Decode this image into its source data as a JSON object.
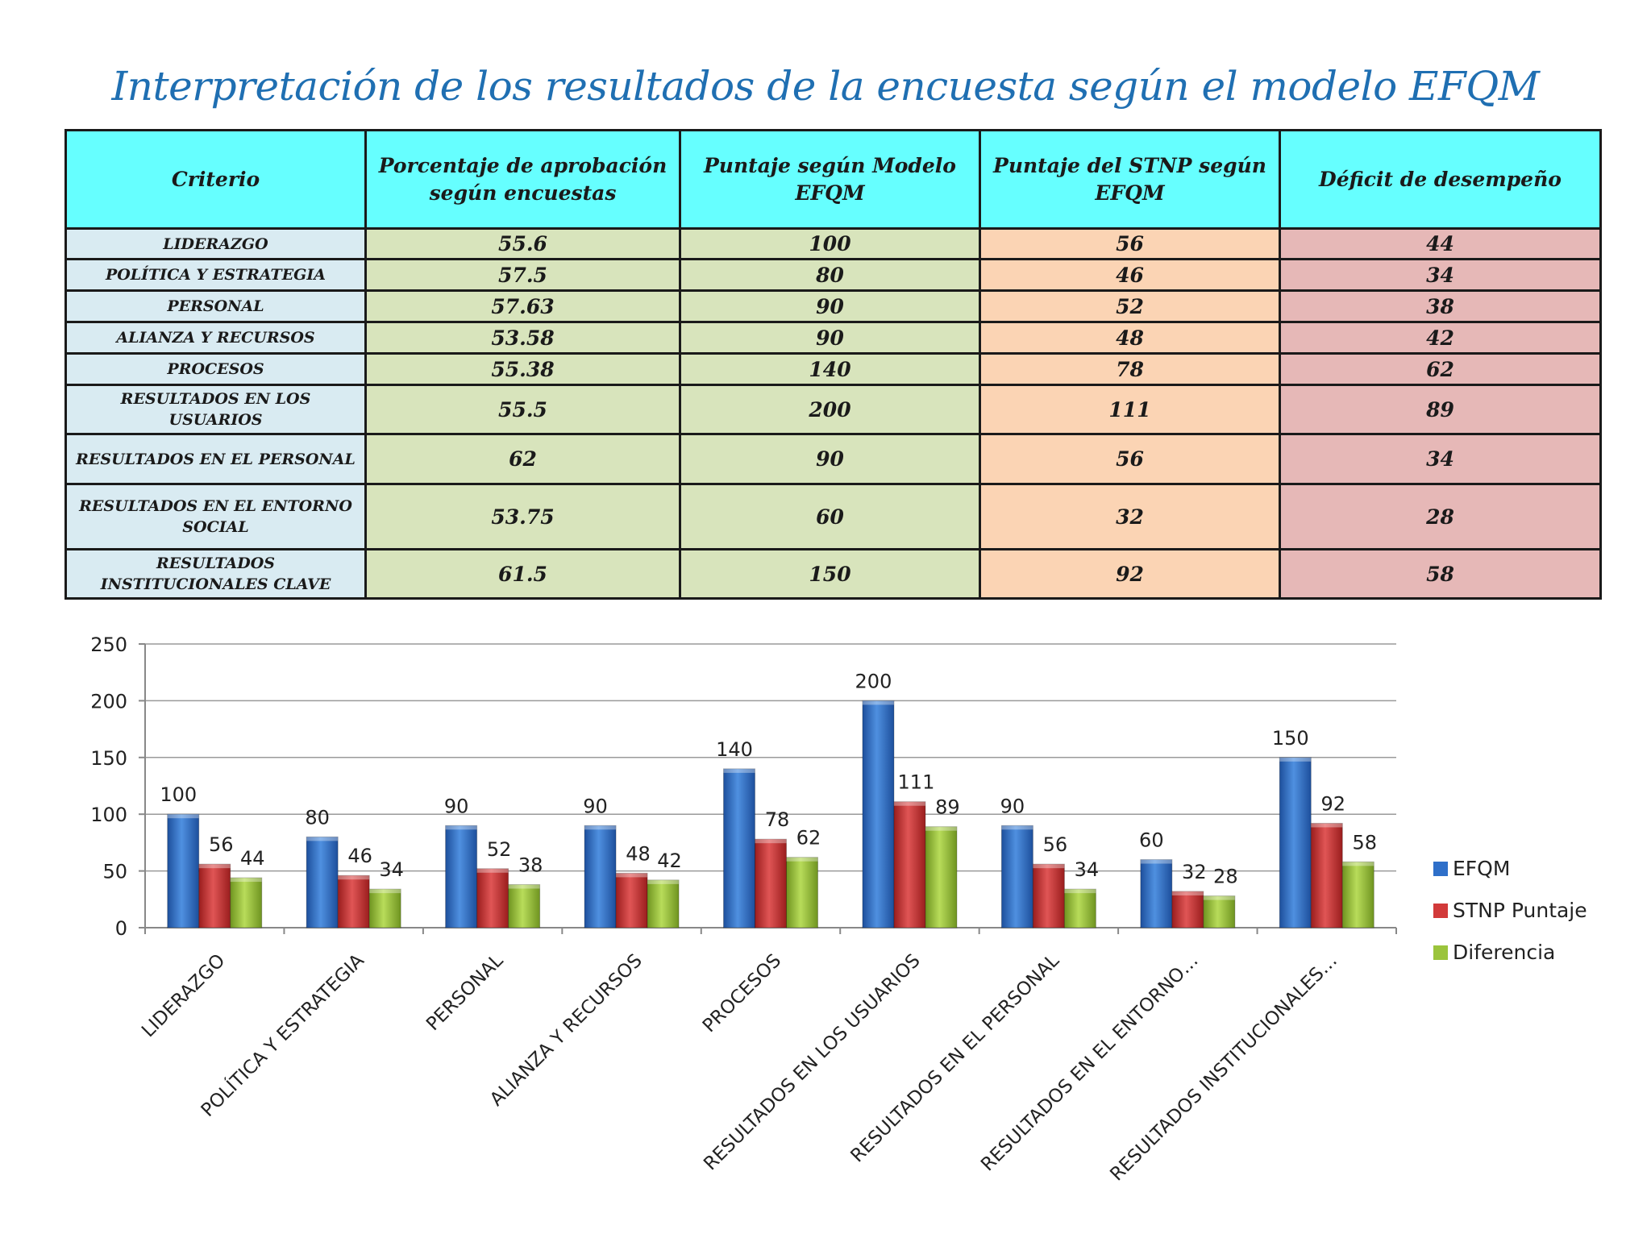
{
  "title": "Interpretación de los resultados de la encuesta según el modelo EFQM",
  "table": {
    "headers": [
      "Criterio",
      "Porcentaje de aprobación según encuestas",
      "Puntaje según Modelo EFQM",
      "Puntaje del STNP según EFQM",
      "Déficit de desempeño"
    ],
    "rows": [
      [
        "LIDERAZGO",
        "55.6",
        "100",
        "56",
        "44"
      ],
      [
        "POLÍTICA Y ESTRATEGIA",
        "57.5",
        "80",
        "46",
        "34"
      ],
      [
        "PERSONAL",
        "57.63",
        "90",
        "52",
        "38"
      ],
      [
        "ALIANZA Y RECURSOS",
        "53.58",
        "90",
        "48",
        "42"
      ],
      [
        "PROCESOS",
        "55.38",
        "140",
        "78",
        "62"
      ],
      [
        "RESULTADOS EN LOS USUARIOS",
        "55.5",
        "200",
        "111",
        "89"
      ],
      [
        "RESULTADOS EN EL PERSONAL",
        "62",
        "90",
        "56",
        "34"
      ],
      [
        "RESULTADOS EN EL ENTORNO SOCIAL",
        "53.75",
        "60",
        "32",
        "28"
      ],
      [
        "RESULTADOS INSTITUCIONALES CLAVE",
        "61.5",
        "150",
        "92",
        "58"
      ]
    ]
  },
  "chart_data": {
    "type": "bar",
    "categories": [
      "LIDERAZGO",
      "POLÍTICA Y ESTRATEGIA",
      "PERSONAL",
      "ALIANZA Y RECURSOS",
      "PROCESOS",
      "RESULTADOS EN LOS USUARIOS",
      "RESULTADOS EN EL PERSONAL",
      "RESULTADOS EN EL ENTORNO…",
      "RESULTADOS INSTITUCIONALES…"
    ],
    "series": [
      {
        "name": "EFQM",
        "color": "#2e6fc9",
        "values": [
          100,
          80,
          90,
          90,
          140,
          200,
          90,
          60,
          150
        ]
      },
      {
        "name": "STNP Puntaje",
        "color": "#d23a3a",
        "values": [
          56,
          46,
          52,
          48,
          78,
          111,
          56,
          32,
          92
        ]
      },
      {
        "name": "Diferencia",
        "color": "#9bc43c",
        "values": [
          44,
          34,
          38,
          42,
          62,
          89,
          34,
          28,
          58
        ]
      }
    ],
    "yticks": [
      "0",
      "50",
      "100",
      "150",
      "200",
      "250"
    ],
    "ylim": [
      0,
      250
    ],
    "legend": "right",
    "grid": true
  }
}
